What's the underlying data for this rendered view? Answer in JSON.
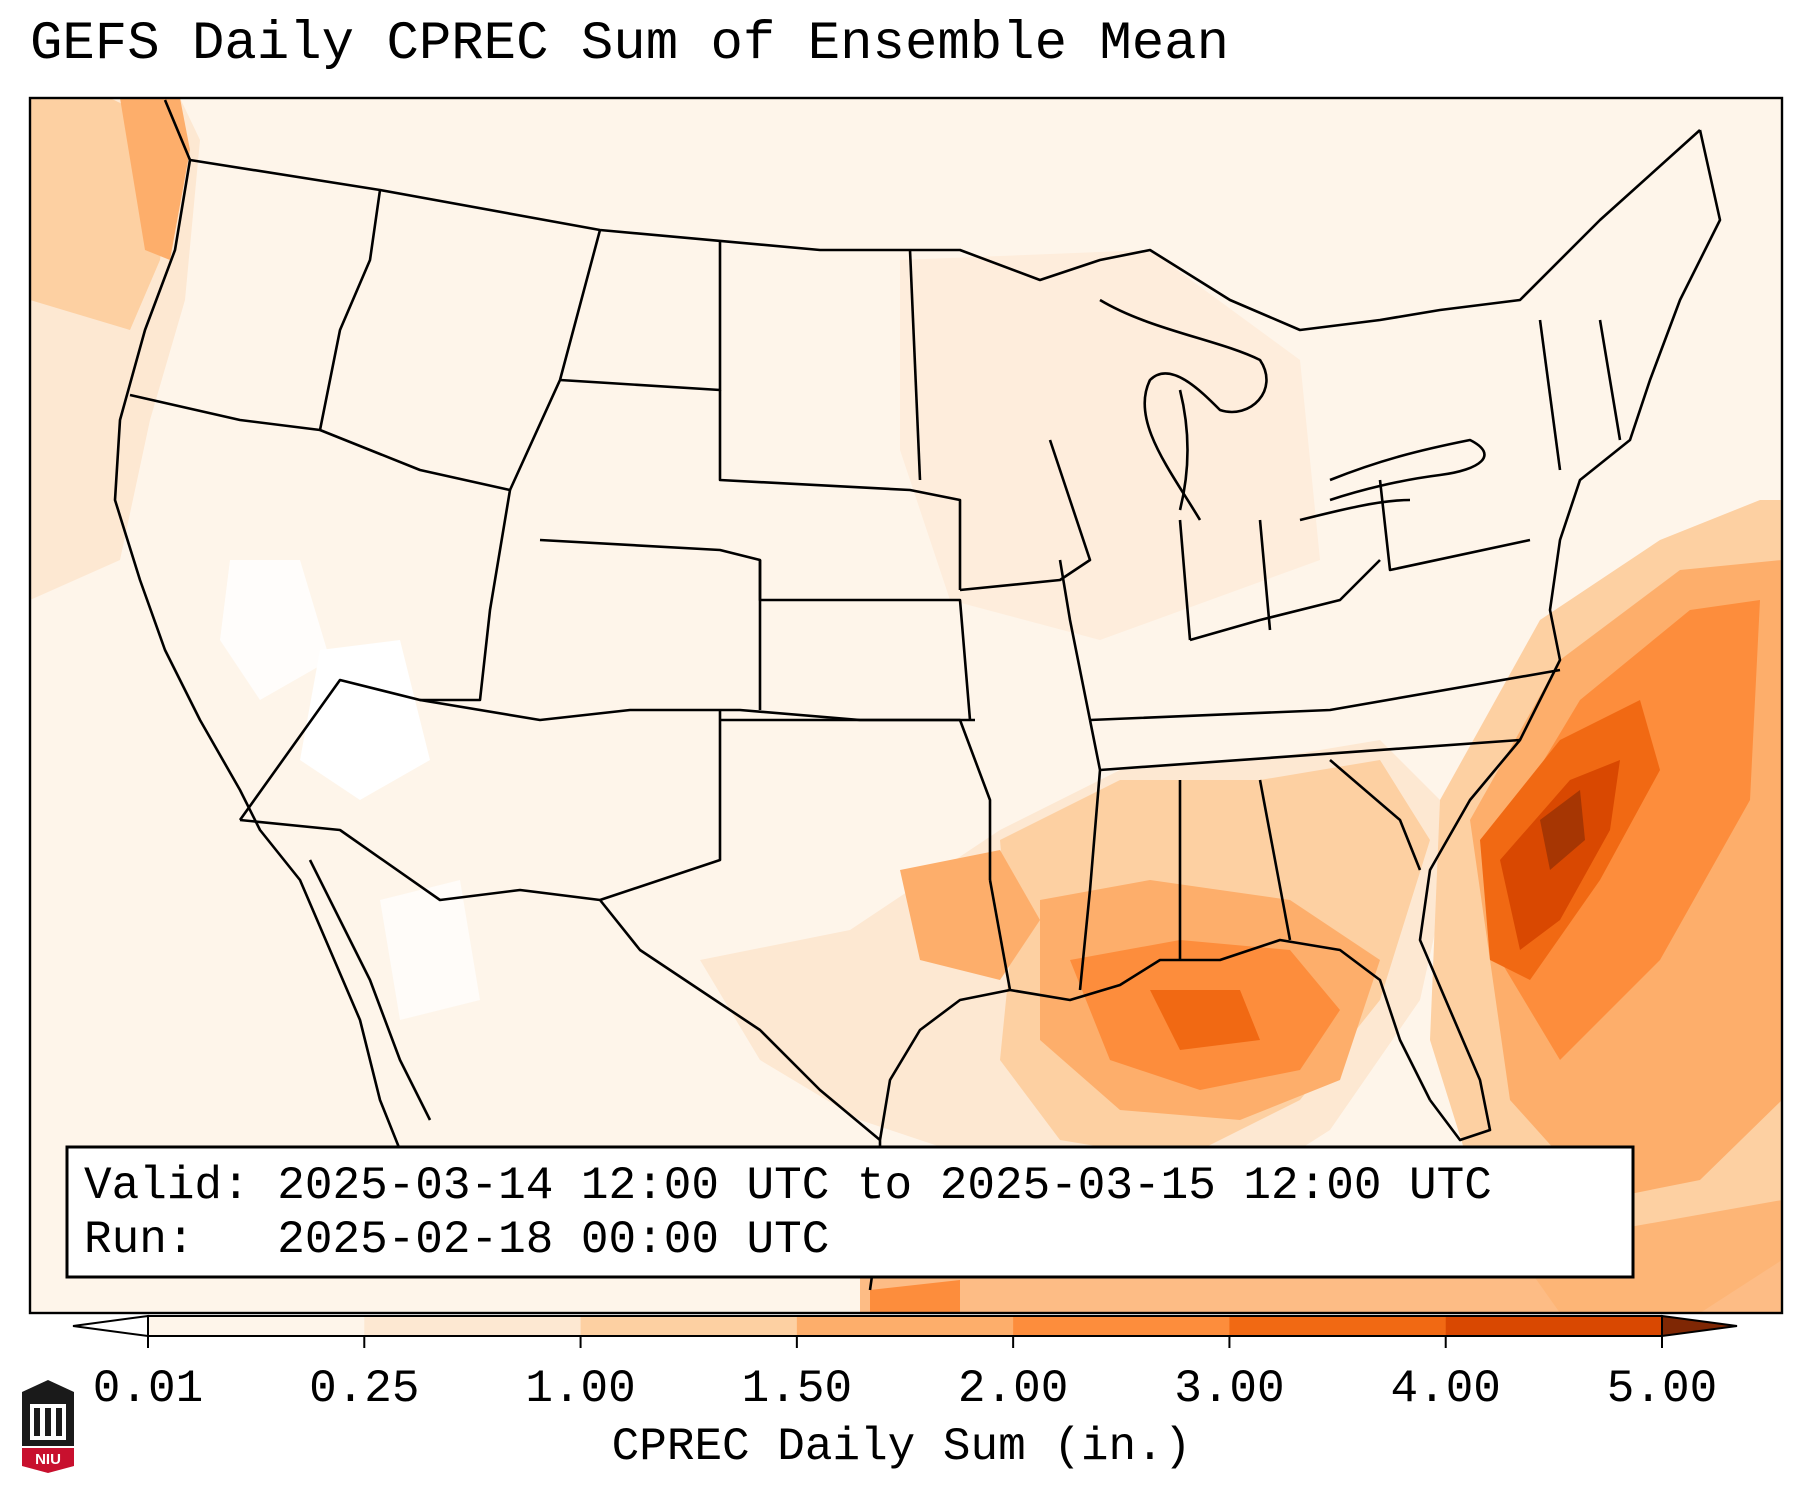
{
  "title": "GEFS Daily CPREC Sum of Ensemble Mean",
  "info": {
    "valid_label": "Valid:",
    "valid_value": "2025-03-14 12:00 UTC to 2025-03-15 12:00 UTC",
    "run_label": "Run:",
    "run_value": "2025-02-18 00:00 UTC"
  },
  "colorbar": {
    "title": "CPREC Daily Sum (in.)",
    "ticks": [
      "0.01",
      "0.25",
      "1.00",
      "1.50",
      "2.00",
      "3.00",
      "4.00",
      "5.00"
    ],
    "colors": [
      "#fef5ea",
      "#fde8d2",
      "#fdd0a2",
      "#fdae6b",
      "#fd8d3c",
      "#f16913",
      "#d94801",
      "#a63603"
    ],
    "under_color": "#ffffff",
    "over_color": "#7f2704",
    "extend": "both"
  },
  "map": {
    "region": "Contiguous United States",
    "field": "GEFS ensemble mean daily convective precipitation (CPREC)",
    "units": "in."
  },
  "logo": {
    "text": "NIU",
    "color": "#c8102e"
  }
}
